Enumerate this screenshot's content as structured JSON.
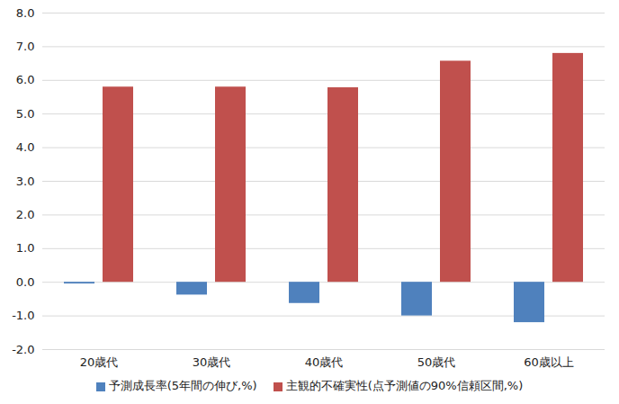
{
  "chart_data": {
    "type": "bar",
    "categories": [
      "20歳代",
      "30歳代",
      "40歳代",
      "50歳代",
      "60歳以上"
    ],
    "series": [
      {
        "name": "予測成長率(5年間の伸び,%)",
        "color": "#4f81bd",
        "values": [
          -0.05,
          -0.38,
          -0.63,
          -1.0,
          -1.2
        ]
      },
      {
        "name": "主観的不確実性(点予測値の90%信頼区間,%)",
        "color": "#c0504d",
        "values": [
          5.8,
          5.8,
          5.78,
          6.57,
          6.8
        ]
      }
    ],
    "ylim": [
      -2,
      8
    ],
    "yticks": [
      {
        "value": -2,
        "label": "-2.0"
      },
      {
        "value": -1,
        "label": "-1.0"
      },
      {
        "value": 0,
        "label": "0.0"
      },
      {
        "value": 1,
        "label": "1.0"
      },
      {
        "value": 2,
        "label": "2.0"
      },
      {
        "value": 3,
        "label": "3.0"
      },
      {
        "value": 4,
        "label": "4.0"
      },
      {
        "value": 5,
        "label": "5.0"
      },
      {
        "value": 6,
        "label": "6.0"
      },
      {
        "value": 7,
        "label": "7.0"
      },
      {
        "value": 8,
        "label": "8.0"
      }
    ],
    "grid": true,
    "legend": "bottom"
  }
}
